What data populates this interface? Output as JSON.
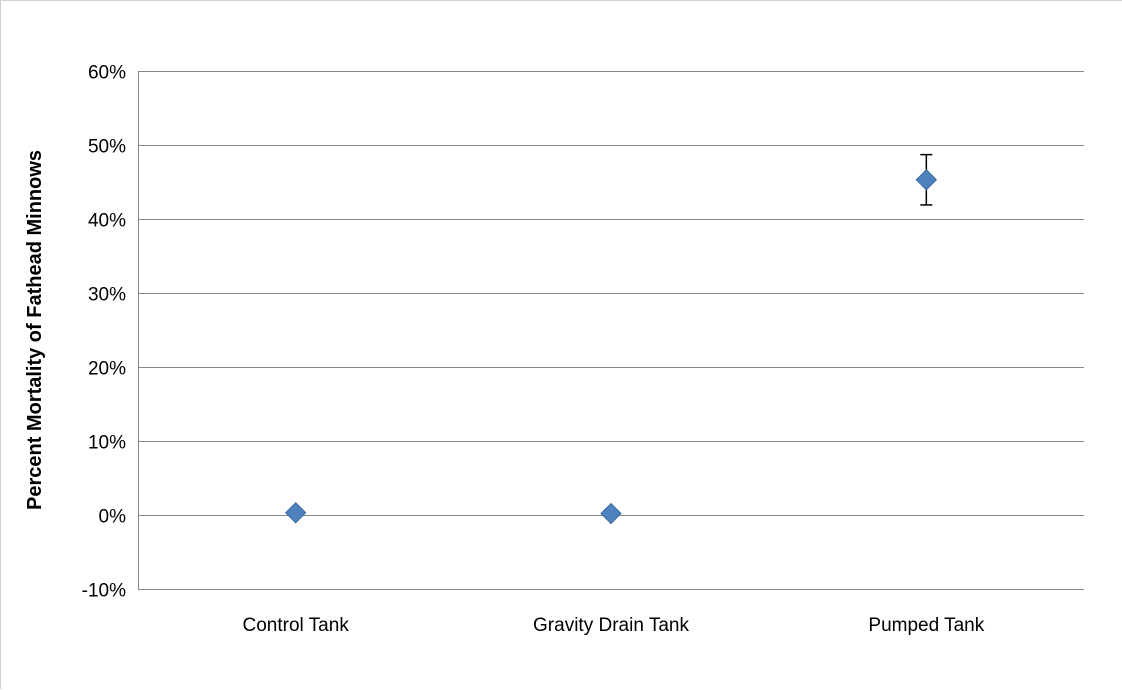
{
  "chart_data": {
    "type": "scatter",
    "categories": [
      "Control Tank",
      "Gravity Drain Tank",
      "Pumped Tank"
    ],
    "series": [
      {
        "values": [
          0.003,
          0.002,
          0.453
        ],
        "error": [
          null,
          null,
          0.034
        ],
        "marker": "diamond",
        "color": "#4f81bd"
      }
    ],
    "title": "",
    "xlabel": "",
    "ylabel": "Percent Mortality of Fathead Minnows",
    "ylim": [
      -0.1,
      0.6
    ],
    "y_ticks": [
      -0.1,
      0.0,
      0.1,
      0.2,
      0.3,
      0.4,
      0.5,
      0.6
    ],
    "y_tick_labels": [
      "-10%",
      "0%",
      "10%",
      "20%",
      "30%",
      "40%",
      "50%",
      "60%"
    ],
    "grid": true,
    "legend": "none",
    "gridline_color": "#868686",
    "error_bar_color": "#000000"
  }
}
